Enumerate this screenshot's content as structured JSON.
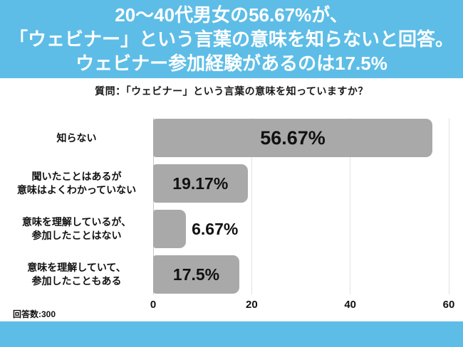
{
  "colors": {
    "accent_blue": "#5dbde7",
    "bar_gray": "#a9a9a9",
    "gridline": "#e2e2e2",
    "text_black": "#111111"
  },
  "header": {
    "title_lines": [
      "20〜40代男女の56.67%が、",
      "「ウェビナー」という言葉の意味を知らないと回答。",
      "ウェビナー参加経験があるのは17.5%"
    ]
  },
  "question": "質問：「ウェビナー」という言葉の意味を知っていますか？",
  "chart_data": {
    "type": "bar",
    "orientation": "horizontal",
    "title": "質問：「ウェビナー」という言葉の意味を知っていますか？",
    "categories": [
      [
        "知らない"
      ],
      [
        "聞いたことはあるが",
        "意味はよくわかっていない"
      ],
      [
        "意味を理解しているが、",
        "参加したことはない"
      ],
      [
        "意味を理解していて、",
        "参加したこともある"
      ]
    ],
    "values": [
      56.67,
      19.17,
      6.67,
      17.5
    ],
    "value_labels": [
      "56.67%",
      "19.17%",
      "6.67%",
      "17.5%"
    ],
    "xlabel": "",
    "ylabel": "",
    "xlim": [
      0,
      60
    ],
    "x_ticks": [
      0,
      20,
      40,
      60
    ],
    "grid": true,
    "legend": false,
    "bar_color": "#a9a9a9"
  },
  "footnote": "回答数:300"
}
